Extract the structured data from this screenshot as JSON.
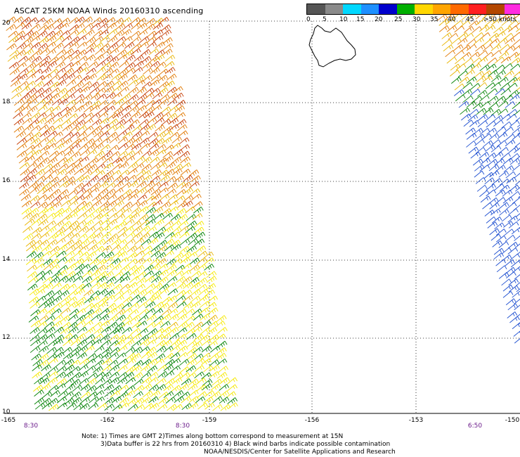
{
  "title": "ASCAT 25KM NOAA Winds 20160310 ascending",
  "legend": {
    "colors": [
      "#555555",
      "#8a8a8a",
      "#00d8ff",
      "#1e90ff",
      "#0000cd",
      "#00b000",
      "#ffd700",
      "#ffa500",
      "#ff6a00",
      "#ff2020",
      "#b34700",
      "#ff2be0",
      "#9400d3"
    ],
    "labels": [
      "0",
      "5",
      "10",
      "15",
      "20",
      "25",
      "30",
      "35",
      "40",
      "45",
      ">50 knots"
    ]
  },
  "map": {
    "lat_labels": [
      "20",
      "18",
      "16",
      "14",
      "12",
      "10"
    ],
    "lon_labels": [
      "-165",
      "-162",
      "-159",
      "-156",
      "-153",
      "-150"
    ],
    "time_labels": [
      "8:30",
      "8:30",
      "6:50"
    ],
    "barb_colors": {
      "black": "#000000",
      "green": "#008000",
      "yellow": "#f5e800",
      "gold": "#e8b400",
      "orange": "#e07800",
      "red": "#c43a00",
      "blue": "#1e4fd0"
    }
  },
  "notes": {
    "line1": "Note: 1) Times are GMT 2)Times along bottom correspond to measurement at 15N",
    "line2": "3)Data buffer is 22 hrs from 20160310 4) Black wind barbs indicate possible contamination",
    "line3": "NOAA/NESDIS/Center for Satellite Applications and Research"
  }
}
